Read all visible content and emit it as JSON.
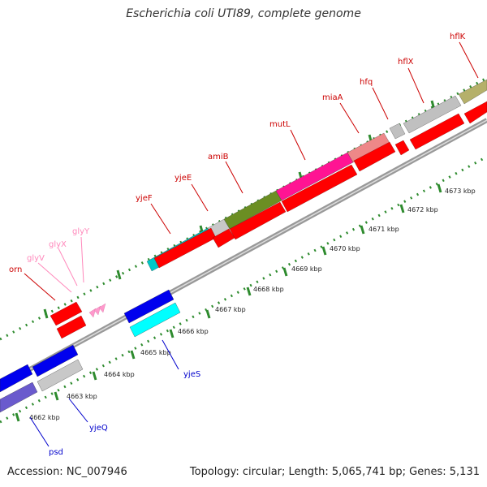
{
  "title": "Escherichia coli UTI89, complete genome",
  "footer": {
    "accession": "Accession: NC_007946",
    "topology": "Topology: circular; Length: 5,065,741 bp; Genes: 5,131"
  },
  "colors": {
    "backbone": "#999999",
    "tick_dots": "#2e8b2e",
    "forward_label": "#cc0000",
    "reverse_label": "#0000cc",
    "trna_label": "#ff88bb"
  },
  "kbp_labels": [
    "4662 kbp",
    "4663 kbp",
    "4664 kbp",
    "4665 kbp",
    "4666 kbp",
    "4667 kbp",
    "4668 kbp",
    "4669 kbp",
    "4670 kbp",
    "4671 kbp",
    "4672 kbp",
    "4673 kbp"
  ],
  "forward_labels": [
    "orn",
    "yjeF",
    "yjeE",
    "amiB",
    "mutL",
    "miaA",
    "hfq",
    "hflX",
    "hflK"
  ],
  "trna_labels": [
    "glyV",
    "glyX",
    "glyY"
  ],
  "reverse_labels": [
    "psd",
    "yjeQ",
    "yjeS"
  ]
}
